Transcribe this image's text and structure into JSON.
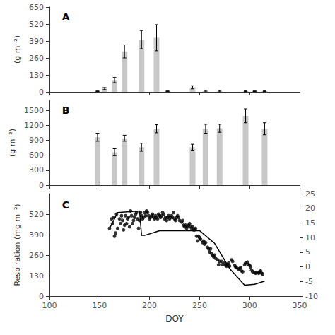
{
  "chart_data": [
    {
      "type": "bar",
      "annotations": [
        "A"
      ],
      "ylabel": "(g m⁻²)",
      "x": [
        148,
        155,
        165,
        175,
        192,
        207,
        218,
        243,
        256,
        270,
        296,
        305,
        315
      ],
      "values": [
        5,
        25,
        90,
        310,
        400,
        415,
        5,
        35,
        5,
        5,
        5,
        5,
        5
      ],
      "errors": [
        2,
        8,
        20,
        50,
        70,
        100,
        2,
        12,
        5,
        5,
        2,
        2,
        2
      ],
      "color": "#c8c8c8",
      "xlim": [
        100,
        350
      ],
      "xticks": [
        100,
        150,
        200,
        250,
        300,
        350
      ],
      "ylim": [
        0,
        650
      ],
      "yticks": [
        0,
        130,
        260,
        390,
        520,
        650
      ],
      "grid": false,
      "tick_labels": "y"
    },
    {
      "type": "bar",
      "annotations": [
        "B"
      ],
      "ylabel": "(g m⁻²)",
      "x": [
        148,
        165,
        175,
        192,
        207,
        243,
        256,
        270,
        296,
        315
      ],
      "values": [
        960,
        660,
        940,
        760,
        1130,
        760,
        1130,
        1140,
        1390,
        1130
      ],
      "errors": [
        80,
        70,
        60,
        80,
        80,
        60,
        90,
        80,
        140,
        120
      ],
      "color": "#c8c8c8",
      "xlim": [
        100,
        350
      ],
      "xticks": [
        100,
        150,
        200,
        250,
        300,
        350
      ],
      "ylim": [
        0,
        1700
      ],
      "yticks": [
        0,
        300,
        600,
        900,
        1200,
        1500
      ],
      "grid": false,
      "tick_labels": "y"
    },
    {
      "type": "scatter",
      "annotations": [
        "C"
      ],
      "xlabel": "DOY",
      "ylabel": "Respiration (mg m⁻²)",
      "series": [
        {
          "type": "scatter",
          "color": "#000000",
          "x": [
            160,
            162,
            163,
            164,
            165,
            166,
            167,
            168,
            170,
            171,
            172,
            173,
            174,
            175,
            176,
            177,
            178,
            179,
            180,
            181,
            182,
            183,
            184,
            185,
            186,
            187,
            188,
            189,
            190,
            191,
            192,
            193,
            194,
            195,
            196,
            197,
            198,
            199,
            200,
            201,
            202,
            203,
            204,
            205,
            206,
            207,
            208,
            209,
            210,
            211,
            212,
            213,
            214,
            215,
            216,
            217,
            218,
            219,
            220,
            221,
            222,
            223,
            224,
            225,
            226,
            227,
            228,
            229,
            230,
            232,
            233,
            234,
            235,
            236,
            237,
            238,
            239,
            240,
            241,
            242,
            243,
            244,
            245,
            246,
            247,
            248,
            249,
            250,
            251,
            253,
            254,
            255,
            256,
            258,
            259,
            260,
            261,
            262,
            263,
            264,
            265,
            266,
            268,
            269,
            270,
            272,
            273,
            275,
            276,
            277,
            278,
            279,
            280,
            282,
            283,
            285,
            286,
            287,
            289,
            290,
            291,
            292,
            293,
            295,
            296,
            298,
            299,
            300,
            301,
            302,
            303,
            305,
            306,
            308,
            309,
            310,
            311,
            312,
            313
          ],
          "values": [
            430,
            490,
            460,
            500,
            380,
            400,
            520,
            430,
            490,
            460,
            510,
            480,
            420,
            450,
            510,
            460,
            490,
            500,
            440,
            540,
            510,
            460,
            480,
            500,
            520,
            530,
            490,
            430,
            480,
            530,
            510,
            490,
            500,
            530,
            510,
            540,
            530,
            510,
            490,
            500,
            510,
            520,
            500,
            490,
            510,
            500,
            490,
            520,
            510,
            500,
            510,
            530,
            520,
            490,
            500,
            480,
            500,
            510,
            490,
            500,
            510,
            500,
            530,
            490,
            480,
            500,
            510,
            500,
            480,
            470,
            480,
            450,
            440,
            450,
            430,
            440,
            450,
            460,
            440,
            430,
            440,
            420,
            420,
            430,
            380,
            350,
            380,
            370,
            360,
            340,
            350,
            330,
            340,
            310,
            300,
            280,
            300,
            270,
            260,
            250,
            260,
            240,
            230,
            200,
            220,
            220,
            200,
            210,
            195,
            190,
            200,
            210,
            190,
            230,
            220,
            195,
            185,
            180,
            170,
            175,
            180,
            160,
            155,
            200,
            210,
            215,
            200,
            195,
            185,
            165,
            155,
            150,
            145,
            150,
            145,
            155,
            160,
            145,
            140
          ]
        },
        {
          "type": "line",
          "color": "#000000",
          "x": [
            160,
            165,
            168,
            190,
            192,
            195,
            210,
            230,
            250,
            265,
            280,
            295,
            305,
            315
          ],
          "values": [
            430,
            490,
            530,
            540,
            385,
            385,
            415,
            415,
            415,
            335,
            175,
            70,
            75,
            95
          ]
        }
      ],
      "xlim": [
        100,
        350
      ],
      "xticks": [
        100,
        150,
        200,
        250,
        300,
        350
      ],
      "ylim": [
        0,
        650
      ],
      "yticks": [
        0,
        130,
        260,
        390,
        520
      ],
      "y2lim": [
        -10,
        25
      ],
      "y2ticks": [
        -10,
        -5,
        0,
        5,
        10,
        15,
        20,
        25
      ],
      "grid": false
    }
  ]
}
